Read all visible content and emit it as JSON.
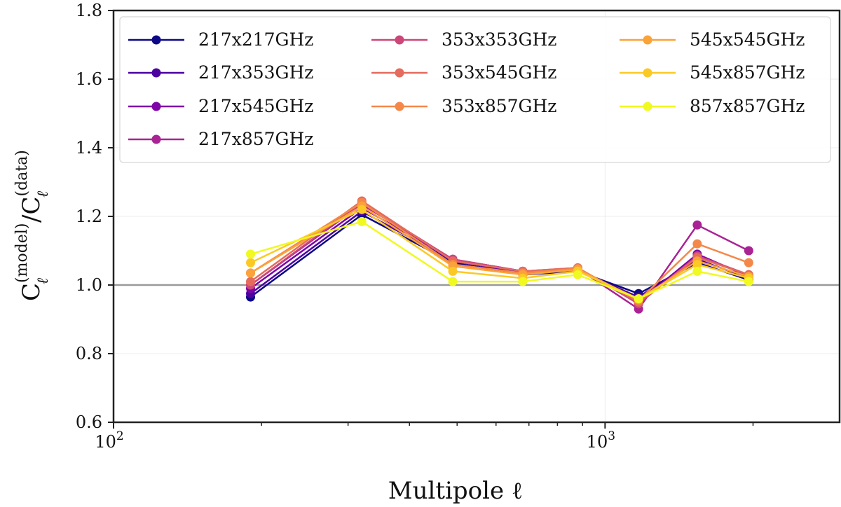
{
  "chart_data": {
    "type": "line",
    "xscale": "log",
    "xlim": [
      100,
      3000
    ],
    "ylim": [
      0.6,
      1.8
    ],
    "xlabel": "Multipole ℓ",
    "ylabel": {
      "base": "C",
      "sub": "ℓ",
      "sup_model": "(model)",
      "sup_data": "(data)"
    },
    "x_ticks": [
      {
        "value": 100,
        "base": "10",
        "exp": "2"
      },
      {
        "value": 1000,
        "base": "10",
        "exp": "3"
      }
    ],
    "y_ticks": [
      "0.6",
      "0.8",
      "1.0",
      "1.2",
      "1.4",
      "1.6",
      "1.8"
    ],
    "reference_line": 1.0,
    "grid": true,
    "legend_position": "top",
    "x": [
      190,
      320,
      490,
      680,
      880,
      1170,
      1540,
      1960
    ],
    "series": [
      {
        "name": "217x217GHz",
        "color": "#0d0887",
        "values": [
          0.965,
          1.205,
          1.065,
          1.03,
          1.04,
          0.975,
          1.065,
          1.015
        ]
      },
      {
        "name": "217x353GHz",
        "color": "#4c02a1",
        "values": [
          0.975,
          1.215,
          1.07,
          1.035,
          1.042,
          0.965,
          1.075,
          1.02
        ]
      },
      {
        "name": "217x545GHz",
        "color": "#7e03a8",
        "values": [
          0.99,
          1.225,
          1.075,
          1.04,
          1.045,
          0.95,
          1.09,
          1.025
        ]
      },
      {
        "name": "217x857GHz",
        "color": "#a92395",
        "values": [
          1.0,
          1.235,
          1.075,
          1.04,
          1.048,
          0.93,
          1.175,
          1.1
        ]
      },
      {
        "name": "353x353GHz",
        "color": "#cc4778",
        "values": [
          1.0,
          1.24,
          1.075,
          1.04,
          1.05,
          0.945,
          1.085,
          1.03
        ]
      },
      {
        "name": "353x545GHz",
        "color": "#e56b5d",
        "values": [
          1.01,
          1.245,
          1.07,
          1.04,
          1.05,
          0.95,
          1.08,
          1.03
        ]
      },
      {
        "name": "353x857GHz",
        "color": "#f48849",
        "values": [
          1.035,
          1.24,
          1.06,
          1.035,
          1.048,
          0.955,
          1.12,
          1.065
        ]
      },
      {
        "name": "545x545GHz",
        "color": "#fba238",
        "values": [
          1.035,
          1.23,
          1.055,
          1.03,
          1.045,
          0.958,
          1.07,
          1.025
        ]
      },
      {
        "name": "545x857GHz",
        "color": "#fbc926",
        "values": [
          1.065,
          1.22,
          1.04,
          1.02,
          1.04,
          0.96,
          1.06,
          1.02
        ]
      },
      {
        "name": "857x857GHz",
        "color": "#f0f921",
        "values": [
          1.09,
          1.185,
          1.01,
          1.01,
          1.03,
          0.96,
          1.04,
          1.01
        ]
      }
    ]
  }
}
